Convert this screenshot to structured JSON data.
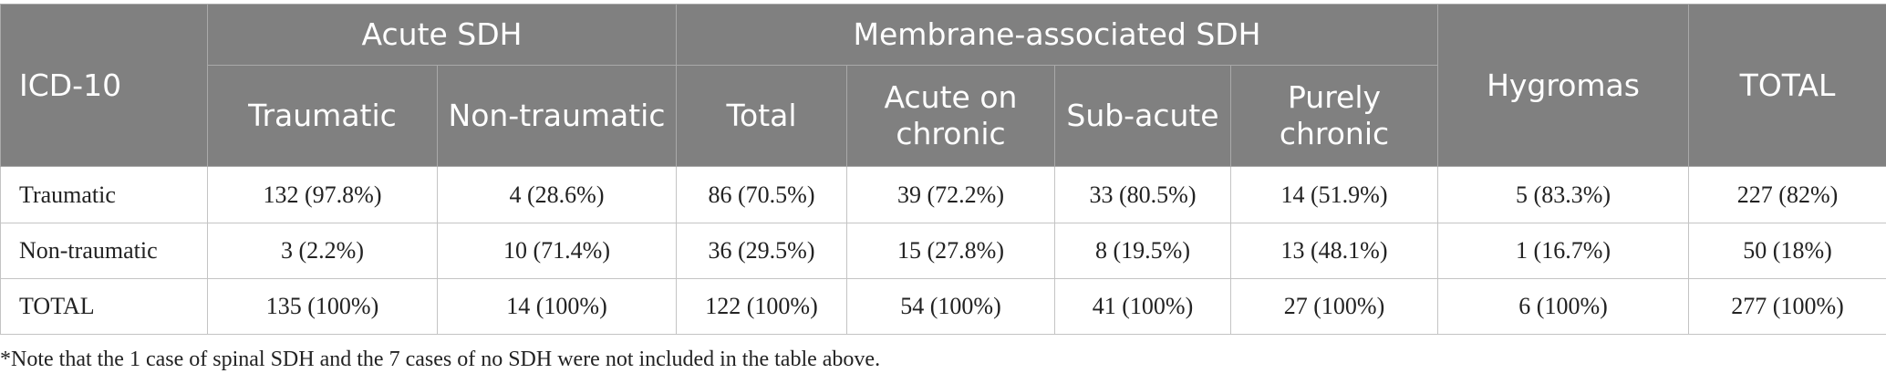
{
  "header": {
    "icd": "ICD-10",
    "acute_group": "Acute SDH",
    "membrane_group": "Membrane-associated SDH",
    "hygromas": "Hygromas",
    "total": "TOTAL",
    "sub": {
      "traumatic": "Traumatic",
      "non_traumatic": "Non-traumatic",
      "membrane_total": "Total",
      "acute_on_chronic": "Acute on chronic",
      "sub_acute": "Sub-acute",
      "purely_chronic": "Purely chronic"
    }
  },
  "rows": [
    {
      "label": "Traumatic",
      "cells": [
        "132 (97.8%)",
        "4 (28.6%)",
        "86 (70.5%)",
        "39 (72.2%)",
        "33 (80.5%)",
        "14 (51.9%)",
        "5 (83.3%)",
        "227 (82%)"
      ]
    },
    {
      "label": "Non-traumatic",
      "cells": [
        "3 (2.2%)",
        "10 (71.4%)",
        "36 (29.5%)",
        "15 (27.8%)",
        "8 (19.5%)",
        "13 (48.1%)",
        "1 (16.7%)",
        "50 (18%)"
      ]
    },
    {
      "label": "TOTAL",
      "cells": [
        "135 (100%)",
        "14 (100%)",
        "122 (100%)",
        "54 (100%)",
        "41 (100%)",
        "27 (100%)",
        "6 (100%)",
        "277 (100%)"
      ]
    }
  ],
  "footnote": "*Note that the 1 case of spinal SDH and the 7 cases of no SDH were not included in the table above.",
  "colors": {
    "header_bg": "#808080",
    "header_text": "#ffffff",
    "border": "#c4c4c4"
  }
}
